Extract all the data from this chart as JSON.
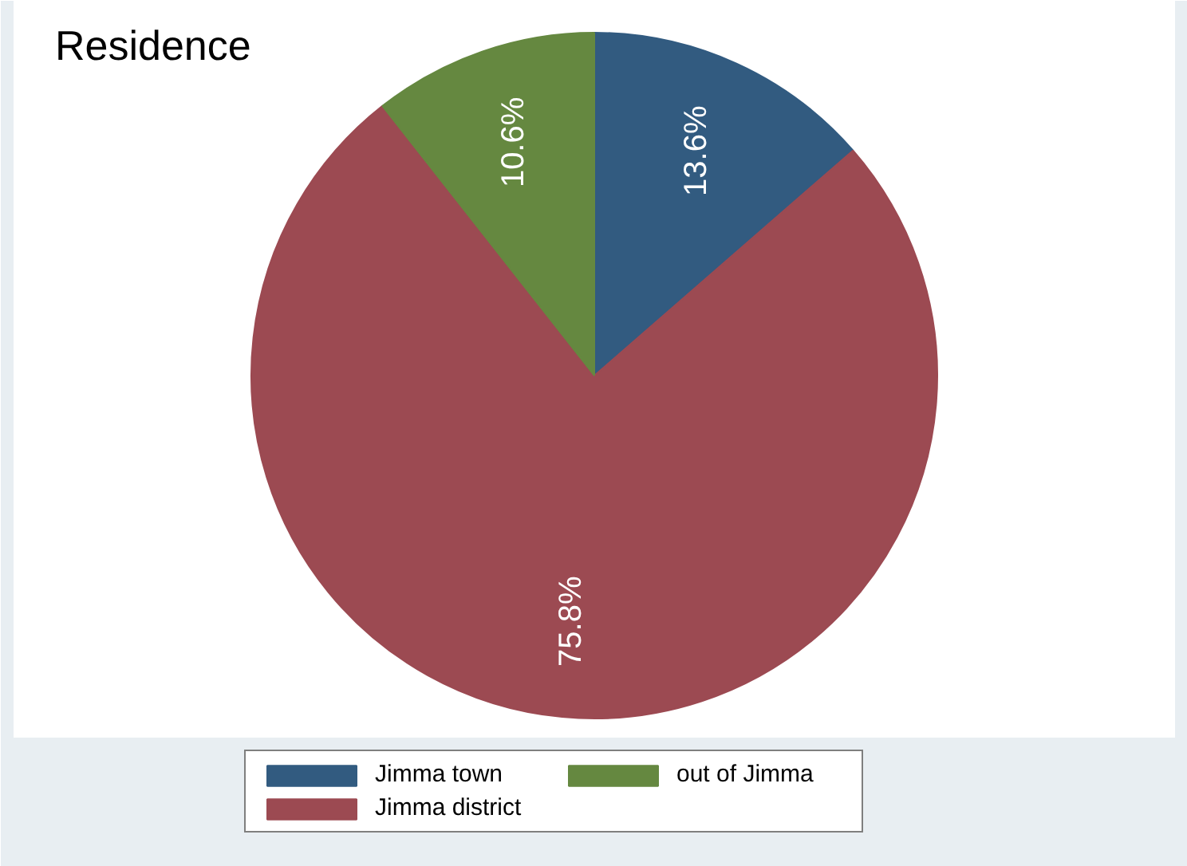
{
  "chart_data": {
    "type": "pie",
    "title": "Residence",
    "categories": [
      "Jimma town",
      "Jimma district",
      "out of Jimma"
    ],
    "values": [
      13.6,
      75.8,
      10.6
    ],
    "colors": [
      "#325b80",
      "#9c4a52",
      "#658840"
    ],
    "value_labels": [
      "13.6%",
      "75.8%",
      "10.6%"
    ],
    "legend": "bottom"
  }
}
